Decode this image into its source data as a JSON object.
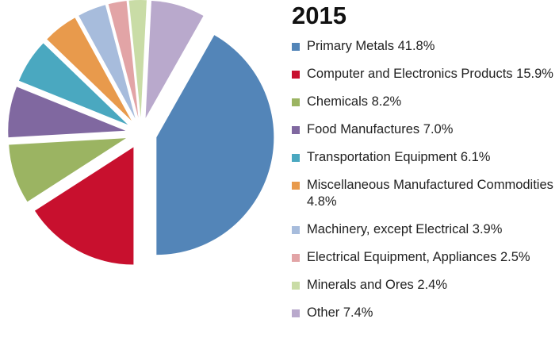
{
  "chart_data": {
    "type": "pie",
    "title": "2015",
    "categories": [
      "Primary Metals",
      "Computer and Electronics Products",
      "Chemicals",
      "Food Manufactures",
      "Transportation Equipment",
      "Miscellaneous Manufactured Commodities",
      "Machinery, except Electrical",
      "Electrical Equipment, Appliances",
      "Minerals and Ores",
      "Other"
    ],
    "values": [
      41.8,
      15.9,
      8.2,
      7.0,
      6.1,
      4.8,
      3.9,
      2.5,
      2.4,
      7.4
    ],
    "value_labels": [
      "41.8%",
      "15.9%",
      "8.2%",
      "7.0%",
      "6.1%",
      "4.8%",
      "3.9%",
      "2.5%",
      "2.4%",
      "7.4%"
    ],
    "colors": [
      "#5385b8",
      "#c8102e",
      "#9bb462",
      "#8068a0",
      "#4aa8c0",
      "#e89a4c",
      "#a7bcdc",
      "#e2a4a6",
      "#c9dca6",
      "#b9a9cc"
    ]
  }
}
